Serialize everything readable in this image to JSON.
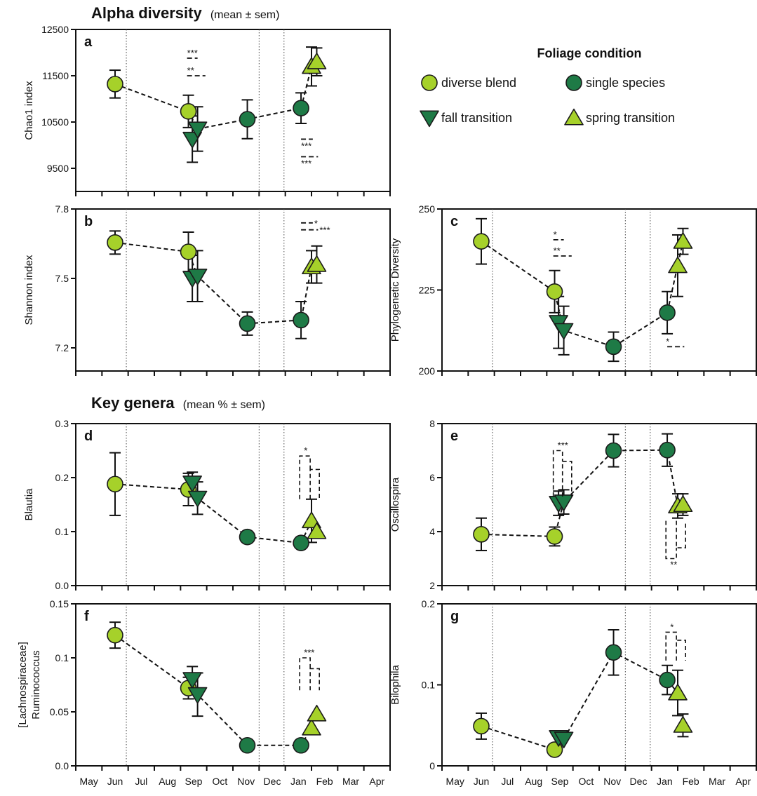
{
  "section_titles": [
    {
      "bold": "Alpha diversity",
      "sub": "(mean ± sem)"
    },
    {
      "bold": "Key genera",
      "sub": "(mean % ± sem)"
    }
  ],
  "legend": {
    "title": "Foliage condition",
    "entries": [
      {
        "label": "diverse blend",
        "marker": "circle",
        "color": "#a6d12a"
      },
      {
        "label": "single species",
        "marker": "circle",
        "color": "#1e7a46"
      },
      {
        "label": "fall transition",
        "marker": "triangle-down",
        "color": "#1e7a46"
      },
      {
        "label": "spring transition",
        "marker": "triangle-up",
        "color": "#a6d12a"
      }
    ]
  },
  "months": [
    "May",
    "Jun",
    "Jul",
    "Aug",
    "Sep",
    "Oct",
    "Nov",
    "Dec",
    "Jan",
    "Feb",
    "Mar",
    "Apr"
  ],
  "chart_data": [
    {
      "id": "a",
      "type": "scatter",
      "panel_label": "a",
      "ylabel": "Chao1 index",
      "ylim": [
        9000,
        12500
      ],
      "yticks": [
        9500,
        10500,
        11500,
        12500
      ],
      "yticklabels": [
        "9500",
        "10500",
        "11500",
        "12500"
      ],
      "show_month_labels": false,
      "dividers": [
        1.93,
        7.0,
        7.95
      ],
      "points": [
        {
          "x": 1.5,
          "y": 11320,
          "err": 300,
          "cond": "diverse blend"
        },
        {
          "x": 4.3,
          "y": 10730,
          "err": 350,
          "cond": "diverse blend"
        },
        {
          "x": 4.45,
          "y": 10130,
          "err": 500,
          "cond": "fall transition"
        },
        {
          "x": 4.65,
          "y": 10350,
          "err": 480,
          "cond": "fall transition"
        },
        {
          "x": 6.55,
          "y": 10560,
          "err": 420,
          "cond": "single species"
        },
        {
          "x": 8.6,
          "y": 10800,
          "err": 330,
          "cond": "single species"
        },
        {
          "x": 9.0,
          "y": 11700,
          "err": 420,
          "cond": "spring transition"
        },
        {
          "x": 9.2,
          "y": 11800,
          "err": 300,
          "cond": "spring transition"
        }
      ],
      "path": [
        [
          1.5,
          11320
        ],
        [
          4.3,
          10730
        ],
        [
          4.65,
          10350
        ],
        [
          6.55,
          10560
        ],
        [
          8.6,
          10800
        ],
        [
          9.0,
          11700
        ]
      ],
      "significance": [
        {
          "x1": 4.25,
          "x2": 4.65,
          "y": 11880,
          "text": "***",
          "pos": "above"
        },
        {
          "x1": 4.25,
          "x2": 4.95,
          "y": 11500,
          "text": "**",
          "pos": "above"
        },
        {
          "x1": 8.6,
          "x2": 9.05,
          "y": 10130,
          "text": "***",
          "pos": "below"
        },
        {
          "x1": 8.6,
          "x2": 9.25,
          "y": 9750,
          "text": "***",
          "pos": "below"
        }
      ]
    },
    {
      "id": "b",
      "type": "scatter",
      "panel_label": "b",
      "ylabel": "Shannon index",
      "ylim": [
        7.1,
        7.8
      ],
      "yticks": [
        7.2,
        7.5,
        7.8
      ],
      "yticklabels": [
        "7.2",
        "7.5",
        "7.8"
      ],
      "show_month_labels": false,
      "dividers": [
        1.93,
        7.0,
        7.95
      ],
      "points": [
        {
          "x": 1.5,
          "y": 7.655,
          "err": 0.05,
          "cond": "diverse blend"
        },
        {
          "x": 4.3,
          "y": 7.615,
          "err": 0.085,
          "cond": "diverse blend"
        },
        {
          "x": 4.45,
          "y": 7.5,
          "err": 0.1,
          "cond": "fall transition"
        },
        {
          "x": 4.65,
          "y": 7.51,
          "err": 0.11,
          "cond": "fall transition"
        },
        {
          "x": 6.55,
          "y": 7.305,
          "err": 0.05,
          "cond": "single species"
        },
        {
          "x": 8.6,
          "y": 7.32,
          "err": 0.08,
          "cond": "single species"
        },
        {
          "x": 9.0,
          "y": 7.55,
          "err": 0.07,
          "cond": "spring transition"
        },
        {
          "x": 9.2,
          "y": 7.56,
          "err": 0.08,
          "cond": "spring transition"
        }
      ],
      "path": [
        [
          1.5,
          7.655
        ],
        [
          4.3,
          7.615
        ],
        [
          4.65,
          7.51
        ],
        [
          6.55,
          7.305
        ],
        [
          8.6,
          7.32
        ],
        [
          9.0,
          7.55
        ]
      ],
      "significance": [
        {
          "x1": 8.6,
          "x2": 9.05,
          "y": 7.74,
          "text": "*",
          "pos": "right"
        },
        {
          "x1": 8.6,
          "x2": 9.25,
          "y": 7.71,
          "text": "***",
          "pos": "right"
        }
      ]
    },
    {
      "id": "c",
      "type": "scatter",
      "panel_label": "c",
      "ylabel": "Phylogenetic Diversity",
      "ylim": [
        200,
        250
      ],
      "yticks": [
        200,
        225,
        250
      ],
      "yticklabels": [
        "200",
        "225",
        "250"
      ],
      "show_month_labels": false,
      "dividers": [
        1.93,
        7.0,
        7.95
      ],
      "points": [
        {
          "x": 1.5,
          "y": 240,
          "err": 7,
          "cond": "diverse blend"
        },
        {
          "x": 4.3,
          "y": 224.5,
          "err": 6.5,
          "cond": "diverse blend"
        },
        {
          "x": 4.45,
          "y": 215,
          "err": 8,
          "cond": "fall transition"
        },
        {
          "x": 4.65,
          "y": 212.5,
          "err": 7.5,
          "cond": "fall transition"
        },
        {
          "x": 6.55,
          "y": 207.5,
          "err": 4.5,
          "cond": "single species"
        },
        {
          "x": 8.6,
          "y": 218,
          "err": 6.5,
          "cond": "single species"
        },
        {
          "x": 9.0,
          "y": 232.5,
          "err": 9.5,
          "cond": "spring transition"
        },
        {
          "x": 9.2,
          "y": 240,
          "err": 4,
          "cond": "spring transition"
        }
      ],
      "path": [
        [
          1.5,
          240
        ],
        [
          4.3,
          224.5
        ],
        [
          4.65,
          212.5
        ],
        [
          6.55,
          207.5
        ],
        [
          8.6,
          218
        ],
        [
          9.2,
          240
        ]
      ],
      "significance": [
        {
          "x1": 4.25,
          "x2": 4.65,
          "y": 240.5,
          "text": "*",
          "pos": "above"
        },
        {
          "x1": 4.25,
          "x2": 4.95,
          "y": 235.5,
          "text": "**",
          "pos": "above"
        },
        {
          "x1": 8.6,
          "x2": 9.25,
          "y": 207.5,
          "text": "*",
          "pos": "left"
        }
      ]
    },
    {
      "id": "d",
      "type": "scatter",
      "panel_label": "d",
      "ylabel": "Blautia",
      "ylim": [
        0,
        0.3
      ],
      "yticks": [
        0,
        0.1,
        0.2,
        0.3
      ],
      "yticklabels": [
        "0.0",
        "0.1",
        "0.2",
        "0.3"
      ],
      "show_month_labels": false,
      "dividers": [
        1.93,
        7.0,
        7.95
      ],
      "points": [
        {
          "x": 1.5,
          "y": 0.188,
          "err": 0.058,
          "cond": "diverse blend"
        },
        {
          "x": 4.3,
          "y": 0.178,
          "err": 0.03,
          "cond": "diverse blend"
        },
        {
          "x": 4.45,
          "y": 0.19,
          "err": 0.02,
          "cond": "fall transition"
        },
        {
          "x": 4.65,
          "y": 0.162,
          "err": 0.03,
          "cond": "fall transition"
        },
        {
          "x": 6.55,
          "y": 0.09,
          "err": 0.0,
          "cond": "single species"
        },
        {
          "x": 8.6,
          "y": 0.079,
          "err": 0.0,
          "cond": "single species"
        },
        {
          "x": 9.0,
          "y": 0.12,
          "err": 0.04,
          "cond": "spring transition"
        },
        {
          "x": 9.2,
          "y": 0.1,
          "err": 0.0,
          "cond": "spring transition"
        }
      ],
      "path": [
        [
          1.5,
          0.188
        ],
        [
          4.3,
          0.178
        ],
        [
          4.65,
          0.162
        ],
        [
          6.55,
          0.09
        ],
        [
          8.6,
          0.079
        ],
        [
          9.0,
          0.12
        ]
      ],
      "significance": [
        {
          "type": "bracket",
          "x": [
            8.55,
            8.95,
            9.3
          ],
          "y0": 0.16,
          "y1": 0.215,
          "y2": 0.24,
          "text": "*"
        }
      ]
    },
    {
      "id": "e",
      "type": "scatter",
      "panel_label": "e",
      "ylabel": "Oscillospira",
      "ylim": [
        2,
        8
      ],
      "yticks": [
        2,
        4,
        6,
        8
      ],
      "yticklabels": [
        "2",
        "4",
        "6",
        "8"
      ],
      "show_month_labels": false,
      "dividers": [
        1.93,
        7.0,
        7.95
      ],
      "points": [
        {
          "x": 1.5,
          "y": 3.9,
          "err": 0.6,
          "cond": "diverse blend"
        },
        {
          "x": 4.3,
          "y": 3.82,
          "err": 0.35,
          "cond": "diverse blend"
        },
        {
          "x": 4.45,
          "y": 5.05,
          "err": 0.45,
          "cond": "fall transition"
        },
        {
          "x": 4.65,
          "y": 5.1,
          "err": 0.45,
          "cond": "fall transition"
        },
        {
          "x": 6.55,
          "y": 7.0,
          "err": 0.6,
          "cond": "single species"
        },
        {
          "x": 8.6,
          "y": 7.02,
          "err": 0.6,
          "cond": "single species"
        },
        {
          "x": 9.0,
          "y": 4.95,
          "err": 0.45,
          "cond": "spring transition"
        },
        {
          "x": 9.2,
          "y": 5.0,
          "err": 0.4,
          "cond": "spring transition"
        }
      ],
      "path": [
        [
          1.5,
          3.9
        ],
        [
          4.3,
          3.82
        ],
        [
          4.65,
          5.1
        ],
        [
          6.55,
          7.0
        ],
        [
          8.6,
          7.02
        ],
        [
          9.0,
          4.95
        ]
      ],
      "significance": [
        {
          "type": "bracket",
          "x": [
            4.25,
            4.6,
            4.95
          ],
          "y0": 5.3,
          "y1": 6.6,
          "y2": 7.0,
          "text": "***"
        },
        {
          "type": "bracket",
          "x": [
            8.55,
            8.95,
            9.3
          ],
          "y0": 4.4,
          "y1": 3.4,
          "y2": 3.0,
          "text": "**"
        }
      ]
    },
    {
      "id": "f",
      "type": "scatter",
      "panel_label": "f",
      "ylabel": [
        "[Lachnospiraceae]",
        "Ruminococcus"
      ],
      "ylim": [
        0,
        0.15
      ],
      "yticks": [
        0,
        0.05,
        0.1,
        0.15
      ],
      "yticklabels": [
        "0.0",
        "0.05",
        "0.1",
        "0.15"
      ],
      "show_month_labels": true,
      "dividers": [
        1.93,
        7.0,
        7.95
      ],
      "points": [
        {
          "x": 1.5,
          "y": 0.121,
          "err": 0.012,
          "cond": "diverse blend"
        },
        {
          "x": 4.3,
          "y": 0.072,
          "err": 0.01,
          "cond": "diverse blend"
        },
        {
          "x": 4.45,
          "y": 0.08,
          "err": 0.012,
          "cond": "fall transition"
        },
        {
          "x": 4.65,
          "y": 0.066,
          "err": 0.02,
          "cond": "fall transition"
        },
        {
          "x": 6.55,
          "y": 0.019,
          "err": 0.0,
          "cond": "single species"
        },
        {
          "x": 8.6,
          "y": 0.019,
          "err": 0.0,
          "cond": "single species"
        },
        {
          "x": 9.0,
          "y": 0.035,
          "err": 0.0,
          "cond": "spring transition"
        },
        {
          "x": 9.2,
          "y": 0.048,
          "err": 0.0,
          "cond": "spring transition"
        }
      ],
      "path": [
        [
          1.5,
          0.121
        ],
        [
          4.3,
          0.072
        ],
        [
          4.65,
          0.066
        ],
        [
          6.55,
          0.019
        ],
        [
          8.6,
          0.019
        ],
        [
          9.0,
          0.035
        ]
      ],
      "significance": [
        {
          "type": "bracket",
          "x": [
            8.55,
            8.95,
            9.3
          ],
          "y0": 0.07,
          "y1": 0.09,
          "y2": 0.1,
          "text": "***"
        }
      ]
    },
    {
      "id": "g",
      "type": "scatter",
      "panel_label": "g",
      "ylabel": "Bilophila",
      "ylim": [
        0,
        0.2
      ],
      "yticks": [
        0,
        0.1,
        0.2
      ],
      "yticklabels": [
        "0",
        "0.1",
        "0.2"
      ],
      "show_month_labels": true,
      "dividers": [
        1.93,
        7.0,
        7.95
      ],
      "points": [
        {
          "x": 1.5,
          "y": 0.049,
          "err": 0.016,
          "cond": "diverse blend"
        },
        {
          "x": 4.3,
          "y": 0.02,
          "err": 0.0,
          "cond": "diverse blend"
        },
        {
          "x": 4.45,
          "y": 0.035,
          "err": 0.0,
          "cond": "fall transition"
        },
        {
          "x": 4.65,
          "y": 0.033,
          "err": 0.0,
          "cond": "fall transition"
        },
        {
          "x": 6.55,
          "y": 0.14,
          "err": 0.028,
          "cond": "single species"
        },
        {
          "x": 8.6,
          "y": 0.106,
          "err": 0.018,
          "cond": "single species"
        },
        {
          "x": 9.0,
          "y": 0.09,
          "err": 0.028,
          "cond": "spring transition"
        },
        {
          "x": 9.2,
          "y": 0.05,
          "err": 0.014,
          "cond": "spring transition"
        }
      ],
      "path": [
        [
          1.5,
          0.049
        ],
        [
          4.3,
          0.02
        ],
        [
          4.65,
          0.033
        ],
        [
          6.55,
          0.14
        ],
        [
          8.6,
          0.106
        ],
        [
          9.0,
          0.09
        ]
      ],
      "significance": [
        {
          "type": "bracket",
          "x": [
            8.55,
            8.95,
            9.3
          ],
          "y0": 0.13,
          "y1": 0.155,
          "y2": 0.165,
          "text": "*"
        }
      ]
    }
  ]
}
